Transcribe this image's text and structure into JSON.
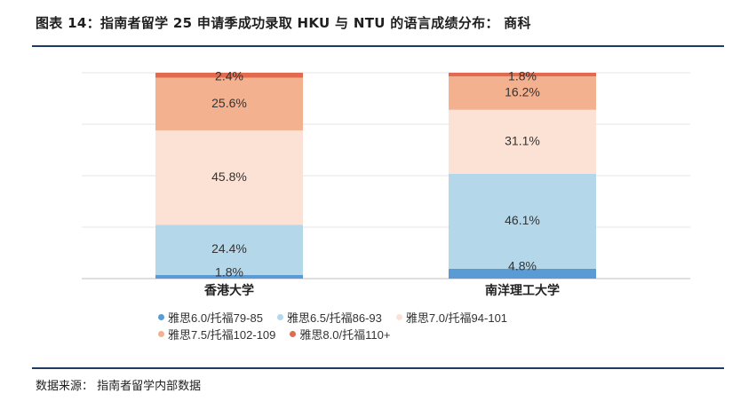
{
  "title": "图表 14：指南者留学 25 申请季成功录取 HKU 与 NTU 的语言成绩分布： 商科",
  "source": "数据来源： 指南者留学内部数据",
  "chart_data": {
    "type": "bar",
    "stacked": true,
    "percent_stacked": true,
    "categories": [
      "香港大学",
      "南洋理工大学"
    ],
    "series": [
      {
        "name": "雅思6.0/托福79-85",
        "color": "#5b9bd5",
        "values": [
          1.8,
          4.8
        ],
        "labels": [
          "1.8%",
          "4.8%"
        ]
      },
      {
        "name": "雅思6.5/托福86-93",
        "color": "#b4d7ea",
        "values": [
          24.4,
          46.1
        ],
        "labels": [
          "24.4%",
          "46.1%"
        ]
      },
      {
        "name": "雅思7.0/托福94-101",
        "color": "#fbe2d5",
        "values": [
          45.8,
          31.1
        ],
        "labels": [
          "45.8%",
          "31.1%"
        ]
      },
      {
        "name": "雅思7.5/托福102-109",
        "color": "#f4b18f",
        "values": [
          25.6,
          16.2
        ],
        "labels": [
          "25.6%",
          "16.2%"
        ]
      },
      {
        "name": "雅思8.0/托福110+",
        "color": "#e06b4f",
        "values": [
          2.4,
          1.8
        ],
        "labels": [
          "2.4%",
          "1.8%"
        ]
      }
    ],
    "ylim": [
      0,
      100
    ],
    "grid": true,
    "legend_position": "bottom"
  }
}
